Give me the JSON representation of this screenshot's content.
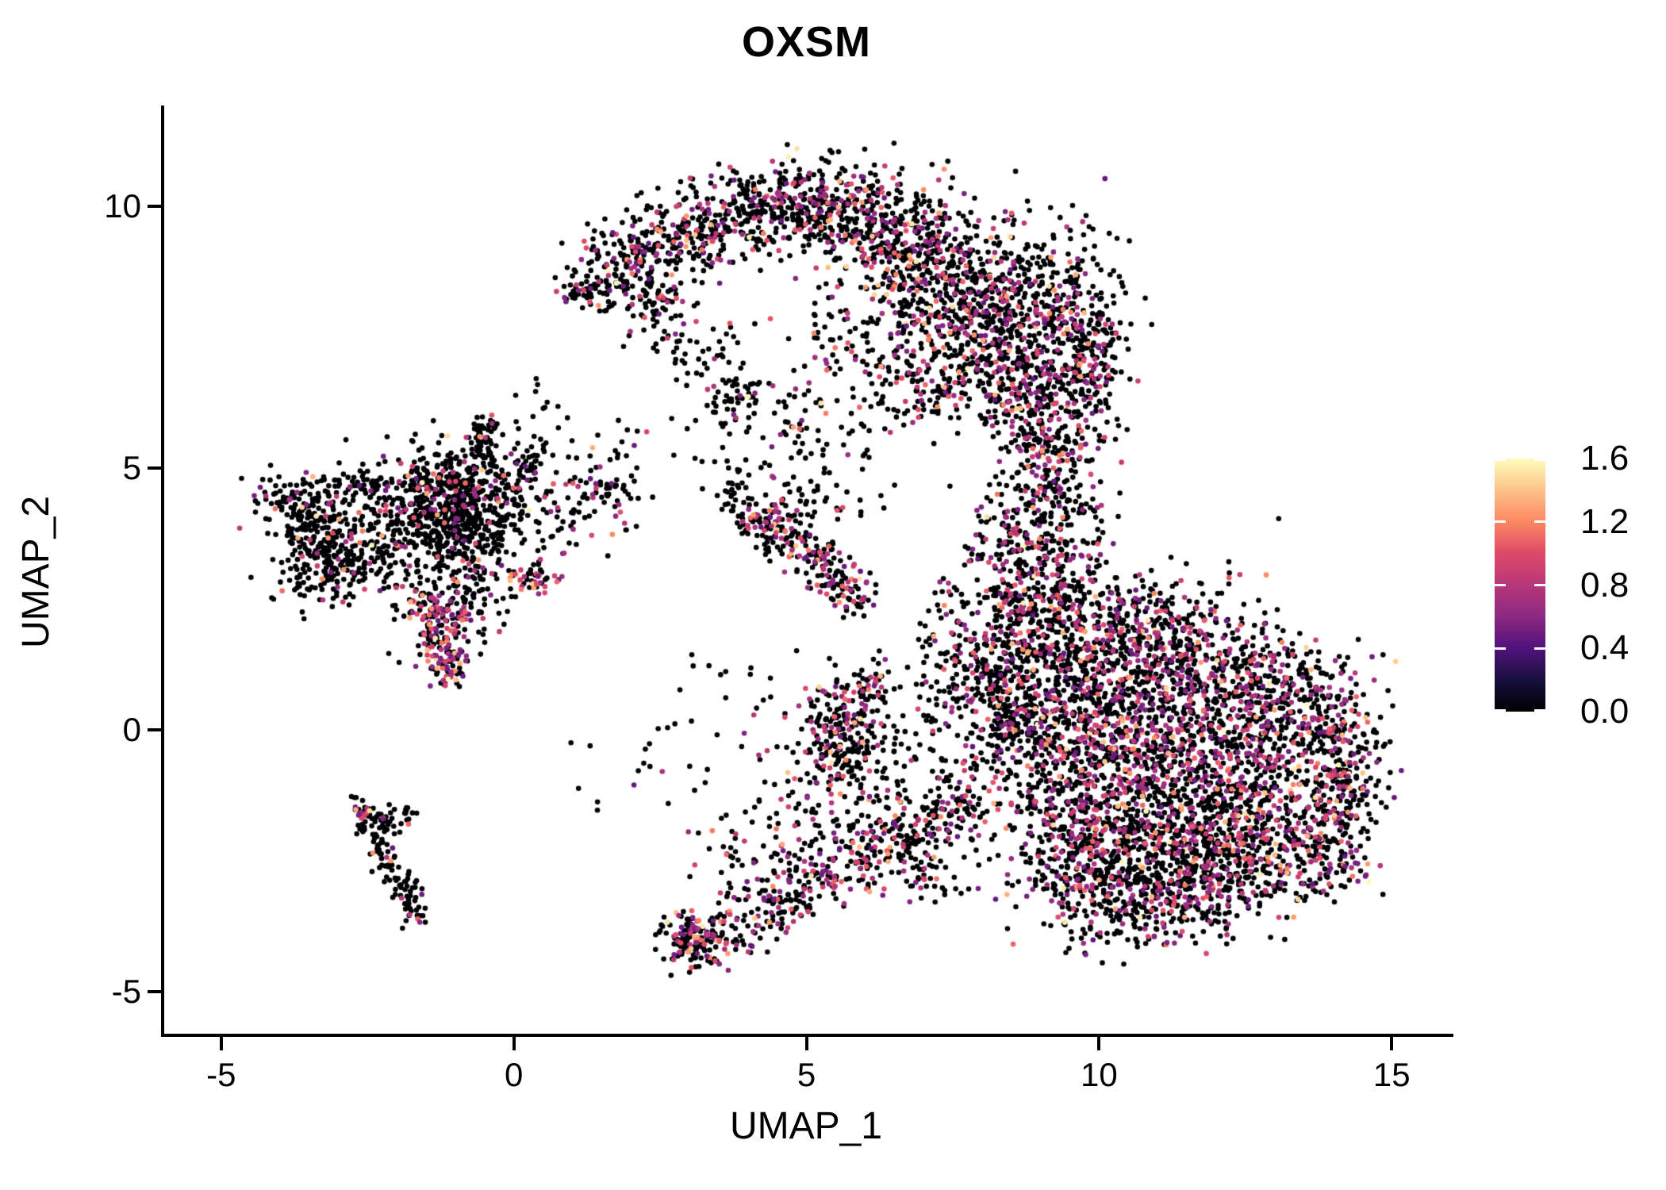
{
  "chart_data": {
    "type": "scatter",
    "title": "OXSM",
    "x_axis": {
      "label": "UMAP_1",
      "ticks": [
        -5,
        0,
        5,
        10,
        15
      ],
      "tick_labels": [
        "-5",
        "0",
        "5",
        "10",
        "15"
      ],
      "range": [
        -6.0,
        16.0
      ]
    },
    "y_axis": {
      "label": "UMAP_2",
      "ticks": [
        -5,
        0,
        5,
        10
      ],
      "tick_labels": [
        "-5",
        "0",
        "5",
        "10"
      ],
      "range": [
        -5.8,
        11.9
      ]
    },
    "colorbar": {
      "ticks": [
        1.6,
        1.2,
        0.8,
        0.4,
        0.0
      ],
      "tick_labels": [
        "1.6",
        "1.2",
        "0.8",
        "0.4",
        "0.0"
      ],
      "range": [
        0.0,
        1.6
      ],
      "colormap": "magma",
      "stops": [
        [
          0,
          "#000004"
        ],
        [
          0.125,
          "#180f3d"
        ],
        [
          0.25,
          "#51127c"
        ],
        [
          0.375,
          "#8c2981"
        ],
        [
          0.5,
          "#b73779"
        ],
        [
          0.625,
          "#de4968"
        ],
        [
          0.75,
          "#fb8761"
        ],
        [
          0.875,
          "#fec287"
        ],
        [
          1,
          "#fcfdbf"
        ]
      ]
    },
    "point_radius_px": 3.3,
    "zero_expression_color": "#000004",
    "seed": 42,
    "clusters": [
      {
        "t": "g",
        "x": 1.15,
        "y": 8.45,
        "sx": 0.22,
        "sy": 0.2,
        "n": 50
      },
      {
        "t": "g",
        "x": 2.0,
        "y": 8.95,
        "sx": 0.45,
        "sy": 0.35,
        "n": 160
      },
      {
        "t": "g",
        "x": 3.1,
        "y": 9.55,
        "sx": 0.5,
        "sy": 0.38,
        "n": 200
      },
      {
        "t": "g",
        "x": 4.4,
        "y": 9.95,
        "sx": 0.55,
        "sy": 0.4,
        "n": 230
      },
      {
        "t": "g",
        "x": 5.6,
        "y": 10.0,
        "sx": 0.6,
        "sy": 0.45,
        "n": 260
      },
      {
        "t": "g",
        "x": 6.8,
        "y": 9.3,
        "sx": 0.65,
        "sy": 0.55,
        "n": 290
      },
      {
        "t": "g",
        "x": 7.7,
        "y": 8.5,
        "sx": 0.65,
        "sy": 0.65,
        "n": 300
      },
      {
        "t": "g",
        "x": 8.4,
        "y": 7.5,
        "sx": 0.55,
        "sy": 0.65,
        "n": 260
      },
      {
        "t": "g",
        "x": 8.9,
        "y": 6.4,
        "sx": 0.45,
        "sy": 0.6,
        "n": 200
      },
      {
        "t": "g",
        "x": 9.45,
        "y": 8.1,
        "sx": 0.5,
        "sy": 0.8,
        "n": 220
      },
      {
        "t": "g",
        "x": 9.95,
        "y": 7.0,
        "sx": 0.28,
        "sy": 0.65,
        "n": 110
      },
      {
        "t": "g",
        "x": 6.4,
        "y": 7.5,
        "sx": 0.9,
        "sy": 0.75,
        "n": 210
      },
      {
        "t": "g",
        "x": 7.4,
        "y": 6.7,
        "sx": 0.6,
        "sy": 0.5,
        "n": 130
      },
      {
        "t": "g",
        "x": 3.8,
        "y": 6.35,
        "sx": 0.3,
        "sy": 0.22,
        "n": 50
      },
      {
        "t": "g",
        "x": 4.7,
        "y": 6.1,
        "sx": 0.45,
        "sy": 0.3,
        "n": 30,
        "p": 0.15
      },
      {
        "t": "g",
        "x": 3.0,
        "y": 7.3,
        "sx": 0.5,
        "sy": 0.4,
        "n": 45,
        "p": 0.15
      },
      {
        "t": "g",
        "x": 2.4,
        "y": 8.1,
        "sx": 0.35,
        "sy": 0.35,
        "n": 60
      },
      {
        "t": "g",
        "x": 9.3,
        "y": 5.0,
        "sx": 0.45,
        "sy": 1.0,
        "n": 270,
        "p": 0.32
      },
      {
        "t": "g",
        "x": 8.7,
        "y": 3.55,
        "sx": 0.5,
        "sy": 0.6,
        "n": 190,
        "p": 0.32
      },
      {
        "t": "b",
        "path": [
          [
            8.55,
            2.7
          ],
          [
            8.35,
            1.2
          ],
          [
            8.45,
            -0.2
          ]
        ],
        "w": 0.3,
        "n": 160,
        "p": 0.25
      },
      {
        "t": "g",
        "x": 7.5,
        "y": 1.6,
        "sx": 0.35,
        "sy": 0.75,
        "n": 80,
        "p": 0.2
      },
      {
        "t": "g",
        "x": 7.9,
        "y": 0.6,
        "sx": 0.5,
        "sy": 0.8,
        "n": 120,
        "p": 0.2
      },
      {
        "t": "g",
        "x": 9.2,
        "y": 2.3,
        "sx": 0.55,
        "sy": 0.75,
        "n": 220,
        "p": 0.3
      },
      {
        "t": "g",
        "x": 9.9,
        "y": 1.3,
        "sx": 0.7,
        "sy": 0.8,
        "n": 300,
        "p": 0.3
      },
      {
        "t": "g",
        "x": 10.9,
        "y": 1.9,
        "sx": 0.9,
        "sy": 0.55,
        "n": 290,
        "p": 0.3
      },
      {
        "t": "g",
        "x": 12.2,
        "y": 1.0,
        "sx": 0.9,
        "sy": 0.55,
        "n": 270,
        "p": 0.3
      },
      {
        "t": "g",
        "x": 13.2,
        "y": 0.3,
        "sx": 0.7,
        "sy": 0.65,
        "n": 240,
        "p": 0.3
      },
      {
        "t": "g",
        "x": 14.0,
        "y": -0.5,
        "sx": 0.42,
        "sy": 0.7,
        "n": 170,
        "p": 0.3
      },
      {
        "t": "g",
        "x": 9.4,
        "y": -0.6,
        "sx": 0.65,
        "sy": 0.95,
        "n": 320,
        "p": 0.3
      },
      {
        "t": "g",
        "x": 10.5,
        "y": 0.0,
        "sx": 0.8,
        "sy": 0.8,
        "n": 340,
        "p": 0.3
      },
      {
        "t": "g",
        "x": 11.6,
        "y": -0.7,
        "sx": 0.9,
        "sy": 0.8,
        "n": 380,
        "p": 0.3
      },
      {
        "t": "g",
        "x": 12.6,
        "y": -1.4,
        "sx": 0.8,
        "sy": 0.7,
        "n": 330,
        "p": 0.3
      },
      {
        "t": "g",
        "x": 10.2,
        "y": -1.9,
        "sx": 0.8,
        "sy": 0.7,
        "n": 330,
        "p": 0.3
      },
      {
        "t": "g",
        "x": 11.3,
        "y": -2.5,
        "sx": 0.8,
        "sy": 0.55,
        "n": 300,
        "p": 0.3
      },
      {
        "t": "g",
        "x": 12.4,
        "y": -2.7,
        "sx": 0.65,
        "sy": 0.5,
        "n": 220,
        "p": 0.3
      },
      {
        "t": "g",
        "x": 9.6,
        "y": -2.9,
        "sx": 0.5,
        "sy": 0.5,
        "n": 170,
        "p": 0.3
      },
      {
        "t": "g",
        "x": 10.9,
        "y": -3.5,
        "sx": 0.6,
        "sy": 0.38,
        "n": 160,
        "p": 0.3
      },
      {
        "t": "g",
        "x": 13.6,
        "y": -2.4,
        "sx": 0.5,
        "sy": 0.45,
        "n": 140,
        "p": 0.3
      },
      {
        "t": "g",
        "x": 14.25,
        "y": -1.3,
        "sx": 0.3,
        "sy": 0.55,
        "n": 90,
        "p": 0.3
      },
      {
        "t": "g",
        "x": 8.6,
        "y": 0.4,
        "sx": 0.35,
        "sy": 0.9,
        "n": 140,
        "p": 0.25
      },
      {
        "t": "g",
        "x": -3.9,
        "y": 4.35,
        "sx": 0.3,
        "sy": 0.26,
        "n": 85,
        "p": 0.12
      },
      {
        "t": "g",
        "x": -3.35,
        "y": 4.0,
        "sx": 0.28,
        "sy": 0.22,
        "n": 55,
        "p": 0.12
      },
      {
        "t": "b",
        "path": [
          [
            -3.3,
            4.6
          ],
          [
            -2.7,
            4.65
          ],
          [
            -2.1,
            4.6
          ]
        ],
        "w": 0.12,
        "n": 40,
        "p": 0.15
      },
      {
        "t": "g",
        "x": -3.15,
        "y": 3.25,
        "sx": 0.48,
        "sy": 0.4,
        "n": 240,
        "p": 0.1
      },
      {
        "t": "g",
        "x": -1.45,
        "y": 3.95,
        "sx": 0.75,
        "sy": 0.75,
        "n": 560,
        "p": 0.12
      },
      {
        "t": "g",
        "x": -0.85,
        "y": 4.3,
        "sx": 0.4,
        "sy": 0.55,
        "n": 260,
        "p": 0.12
      },
      {
        "t": "b",
        "path": [
          [
            -0.5,
            5.9
          ],
          [
            -0.55,
            4.9
          ]
        ],
        "w": 0.14,
        "n": 60,
        "p": 0.15
      },
      {
        "t": "b",
        "path": [
          [
            -0.15,
            4.2
          ],
          [
            0.45,
            5.5
          ]
        ],
        "w": 0.15,
        "n": 55,
        "p": 0.15
      },
      {
        "t": "b",
        "path": [
          [
            -1.6,
            4.65
          ],
          [
            -0.9,
            4.8
          ]
        ],
        "w": 0.13,
        "n": 45,
        "p": 0.25
      },
      {
        "t": "g",
        "x": 0.7,
        "y": 4.4,
        "sx": 0.7,
        "sy": 0.6,
        "n": 120,
        "p": 0.2
      },
      {
        "t": "g",
        "x": 1.7,
        "y": 4.6,
        "sx": 0.3,
        "sy": 0.22,
        "n": 35,
        "p": 0.3
      },
      {
        "t": "b",
        "path": [
          [
            -1.5,
            2.6
          ],
          [
            -1.25,
            1.7
          ],
          [
            -1.15,
            0.9
          ]
        ],
        "w": 0.2,
        "n": 180,
        "p": 0.5
      },
      {
        "t": "g",
        "x": -0.75,
        "y": 2.4,
        "sx": 0.3,
        "sy": 0.5,
        "n": 80,
        "p": 0.25
      },
      {
        "t": "g",
        "x": 0.3,
        "y": 2.85,
        "sx": 0.2,
        "sy": 0.13,
        "n": 40,
        "p": 0.6
      },
      {
        "t": "b",
        "path": [
          [
            4.2,
            4.0
          ],
          [
            5.0,
            3.4
          ],
          [
            6.0,
            2.4
          ]
        ],
        "w": 0.22,
        "n": 200,
        "p": 0.4
      },
      {
        "t": "g",
        "x": 5.0,
        "y": 4.6,
        "sx": 0.7,
        "sy": 0.5,
        "n": 70,
        "p": 0.1
      },
      {
        "t": "g",
        "x": 3.75,
        "y": 4.75,
        "sx": 0.15,
        "sy": 0.3,
        "n": 25,
        "p": 0.1
      },
      {
        "t": "g",
        "x": 4.15,
        "y": 4.05,
        "sx": 0.2,
        "sy": 0.18,
        "n": 45,
        "p": 0.35
      },
      {
        "t": "g",
        "x": 5.65,
        "y": -0.05,
        "sx": 0.42,
        "sy": 0.5,
        "n": 240,
        "p": 0.3
      },
      {
        "t": "b",
        "path": [
          [
            5.95,
            0.55
          ],
          [
            6.35,
            1.3
          ]
        ],
        "w": 0.18,
        "n": 35,
        "p": 0.2
      },
      {
        "t": "g",
        "x": 3.05,
        "y": -4.05,
        "sx": 0.3,
        "sy": 0.26,
        "n": 120,
        "p": 0.3
      },
      {
        "t": "b",
        "path": [
          [
            3.1,
            -4.2
          ],
          [
            3.9,
            -3.65
          ],
          [
            5.1,
            -2.95
          ],
          [
            6.5,
            -2.15
          ],
          [
            7.9,
            -1.35
          ]
        ],
        "w": 0.3,
        "n": 400,
        "p": 0.33
      },
      {
        "t": "g",
        "x": 5.7,
        "y": -1.3,
        "sx": 1.0,
        "sy": 0.65,
        "n": 170,
        "p": 0.2
      },
      {
        "t": "g",
        "x": 4.4,
        "y": -2.5,
        "sx": 0.6,
        "sy": 0.45,
        "n": 70,
        "p": 0.25
      },
      {
        "t": "g",
        "x": 7.0,
        "y": -2.6,
        "sx": 0.45,
        "sy": 0.4,
        "n": 60,
        "p": 0.25
      },
      {
        "t": "b",
        "path": [
          [
            -2.55,
            -1.8
          ],
          [
            -2.2,
            -2.45
          ],
          [
            -1.85,
            -3.1
          ],
          [
            -1.62,
            -3.7
          ]
        ],
        "w": 0.13,
        "n": 95,
        "p": 0.1
      },
      {
        "t": "b",
        "path": [
          [
            -2.5,
            -1.9
          ],
          [
            -2.7,
            -1.3
          ]
        ],
        "w": 0.1,
        "n": 28,
        "p": 0.18
      },
      {
        "t": "b",
        "path": [
          [
            -2.45,
            -1.9
          ],
          [
            -1.8,
            -1.5
          ]
        ],
        "w": 0.12,
        "n": 40,
        "p": 0.15
      },
      {
        "t": "g",
        "x": 2.6,
        "y": 5.6,
        "sx": 1.1,
        "sy": 0.5,
        "n": 22,
        "p": 0.15
      },
      {
        "t": "g",
        "x": 3.9,
        "y": 0.8,
        "sx": 0.8,
        "sy": 0.5,
        "n": 22,
        "p": 0.15
      },
      {
        "t": "g",
        "x": 2.3,
        "y": -0.9,
        "sx": 0.8,
        "sy": 0.6,
        "n": 16,
        "p": 0.15
      },
      {
        "t": "g",
        "x": 0.2,
        "y": 6.15,
        "sx": 0.25,
        "sy": 0.25,
        "n": 10,
        "p": 0.1
      },
      {
        "t": "g",
        "x": 5.2,
        "y": 5.5,
        "sx": 0.5,
        "sy": 0.4,
        "n": 18,
        "p": 0.1
      }
    ]
  }
}
